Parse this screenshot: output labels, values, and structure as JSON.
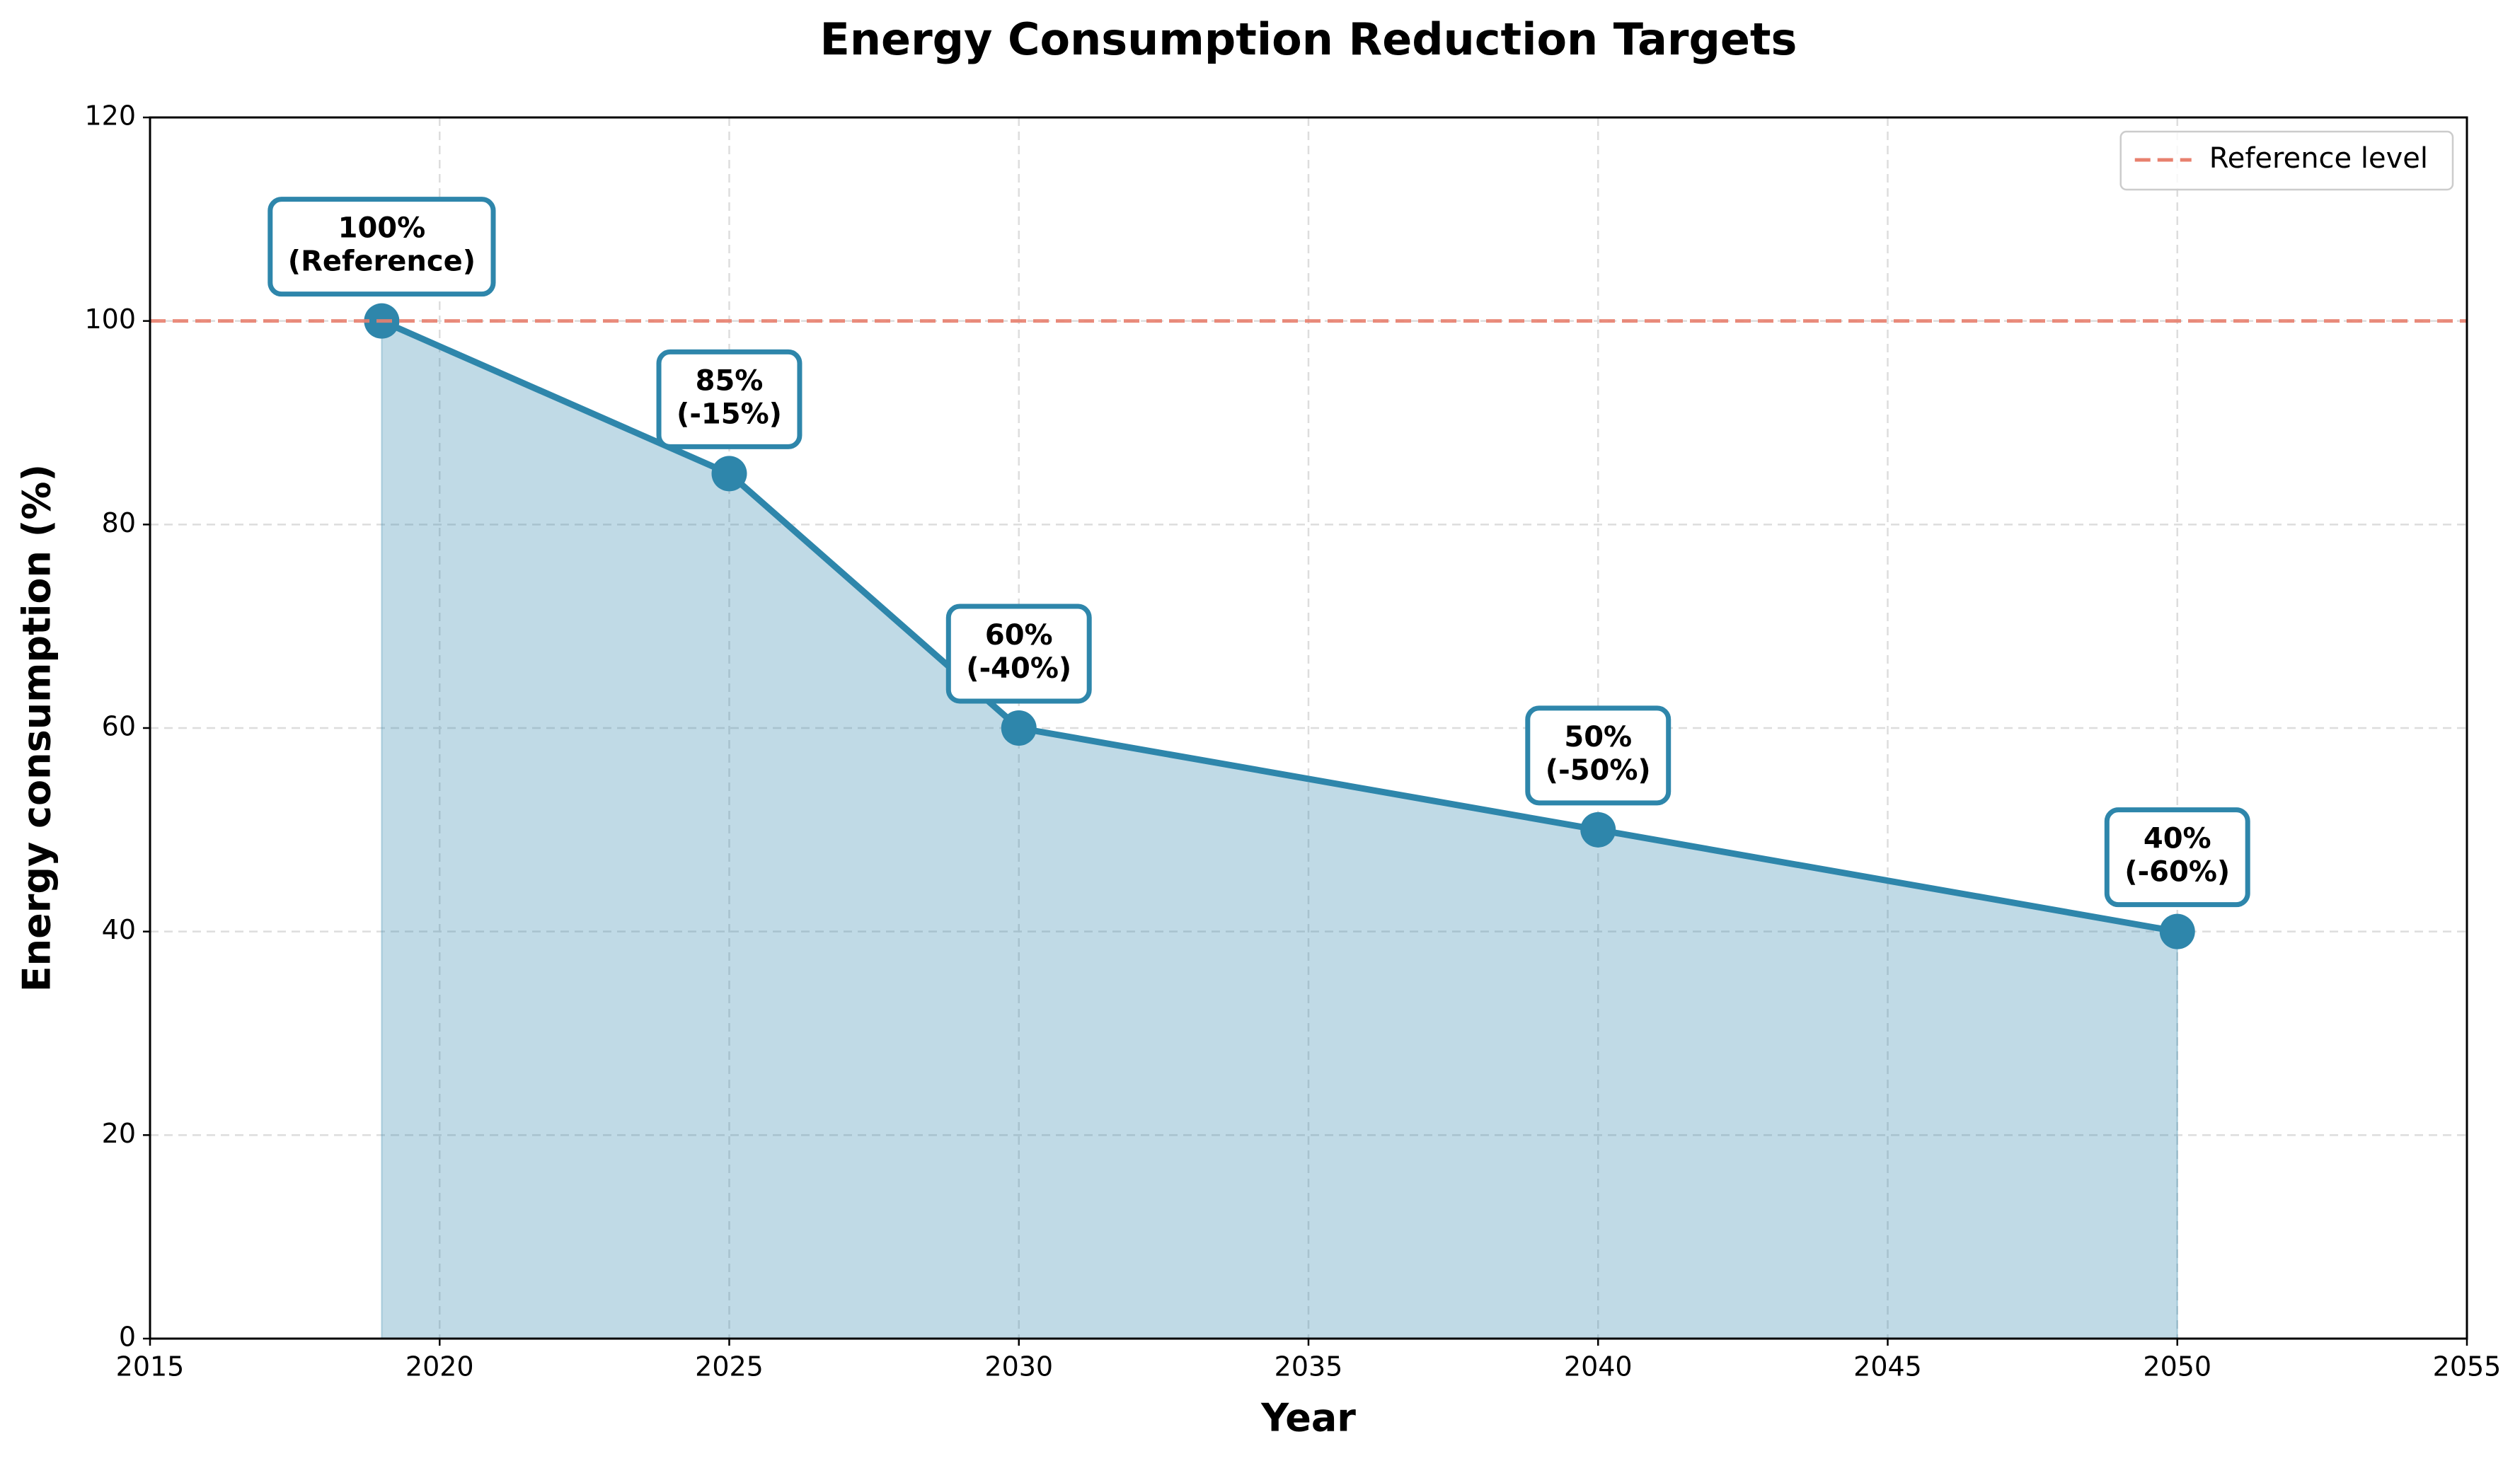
{
  "chart_data": {
    "type": "line",
    "title": "Energy Consumption Reduction Targets",
    "x_label": "Year",
    "y_label": "Energy consumption (%)",
    "x": [
      2019,
      2025,
      2030,
      2040,
      2050
    ],
    "series": [
      {
        "color": "#2e86ab",
        "values": [
          100,
          85,
          60,
          50,
          40
        ],
        "value_labels": [
          "100%",
          "85%",
          "60%",
          "50%",
          "40%"
        ],
        "change_labels": [
          "(Reference)",
          "(-15%)",
          "(-40%)",
          "(-50%)",
          "(-60%)"
        ]
      }
    ],
    "fill": true,
    "reference_line": {
      "value": 100,
      "label": "Reference level",
      "color": "#e8806e"
    },
    "xlim": [
      2015,
      2055
    ],
    "xticks": [
      2015,
      2020,
      2025,
      2030,
      2035,
      2040,
      2045,
      2050,
      2055
    ],
    "ylim": [
      0,
      120
    ],
    "yticks": [
      0,
      20,
      40,
      60,
      80,
      100,
      120
    ],
    "grid": true,
    "legend_position": "upper right"
  }
}
